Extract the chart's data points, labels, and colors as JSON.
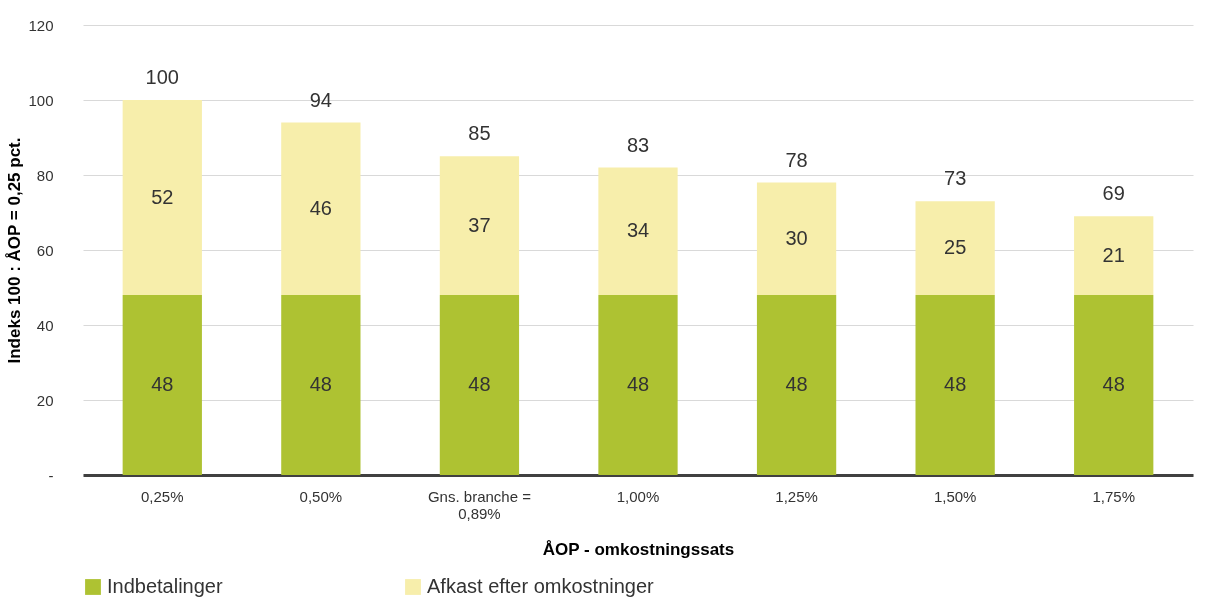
{
  "chart_data": {
    "type": "bar",
    "stacked": true,
    "xlabel": "ÅOP - omkostningssats",
    "ylabel": "Indeks 100 : ÅOP = 0,25 pct.",
    "categories": [
      "0,25%",
      "0,50%",
      "Gns. branche = 0,89%",
      "1,00%",
      "1,25%",
      "1,50%",
      "1,75%"
    ],
    "series": [
      {
        "name": "Indbetalinger",
        "color": "#aec232",
        "values": [
          48,
          48,
          48,
          48,
          48,
          48,
          48
        ]
      },
      {
        "name": "Afkast efter omkostninger",
        "color": "#f7eeab",
        "values": [
          52,
          46,
          37,
          34,
          30,
          25,
          21
        ]
      }
    ],
    "totals": [
      "100",
      "94",
      "85",
      "83",
      "78",
      "73",
      "69"
    ],
    "data_labels": true,
    "ylim": [
      0,
      120
    ],
    "yticks": [
      {
        "value": 0,
        "label": "-"
      },
      20,
      40,
      60,
      80,
      100,
      120
    ],
    "grid": "y",
    "legend": "bottom"
  }
}
